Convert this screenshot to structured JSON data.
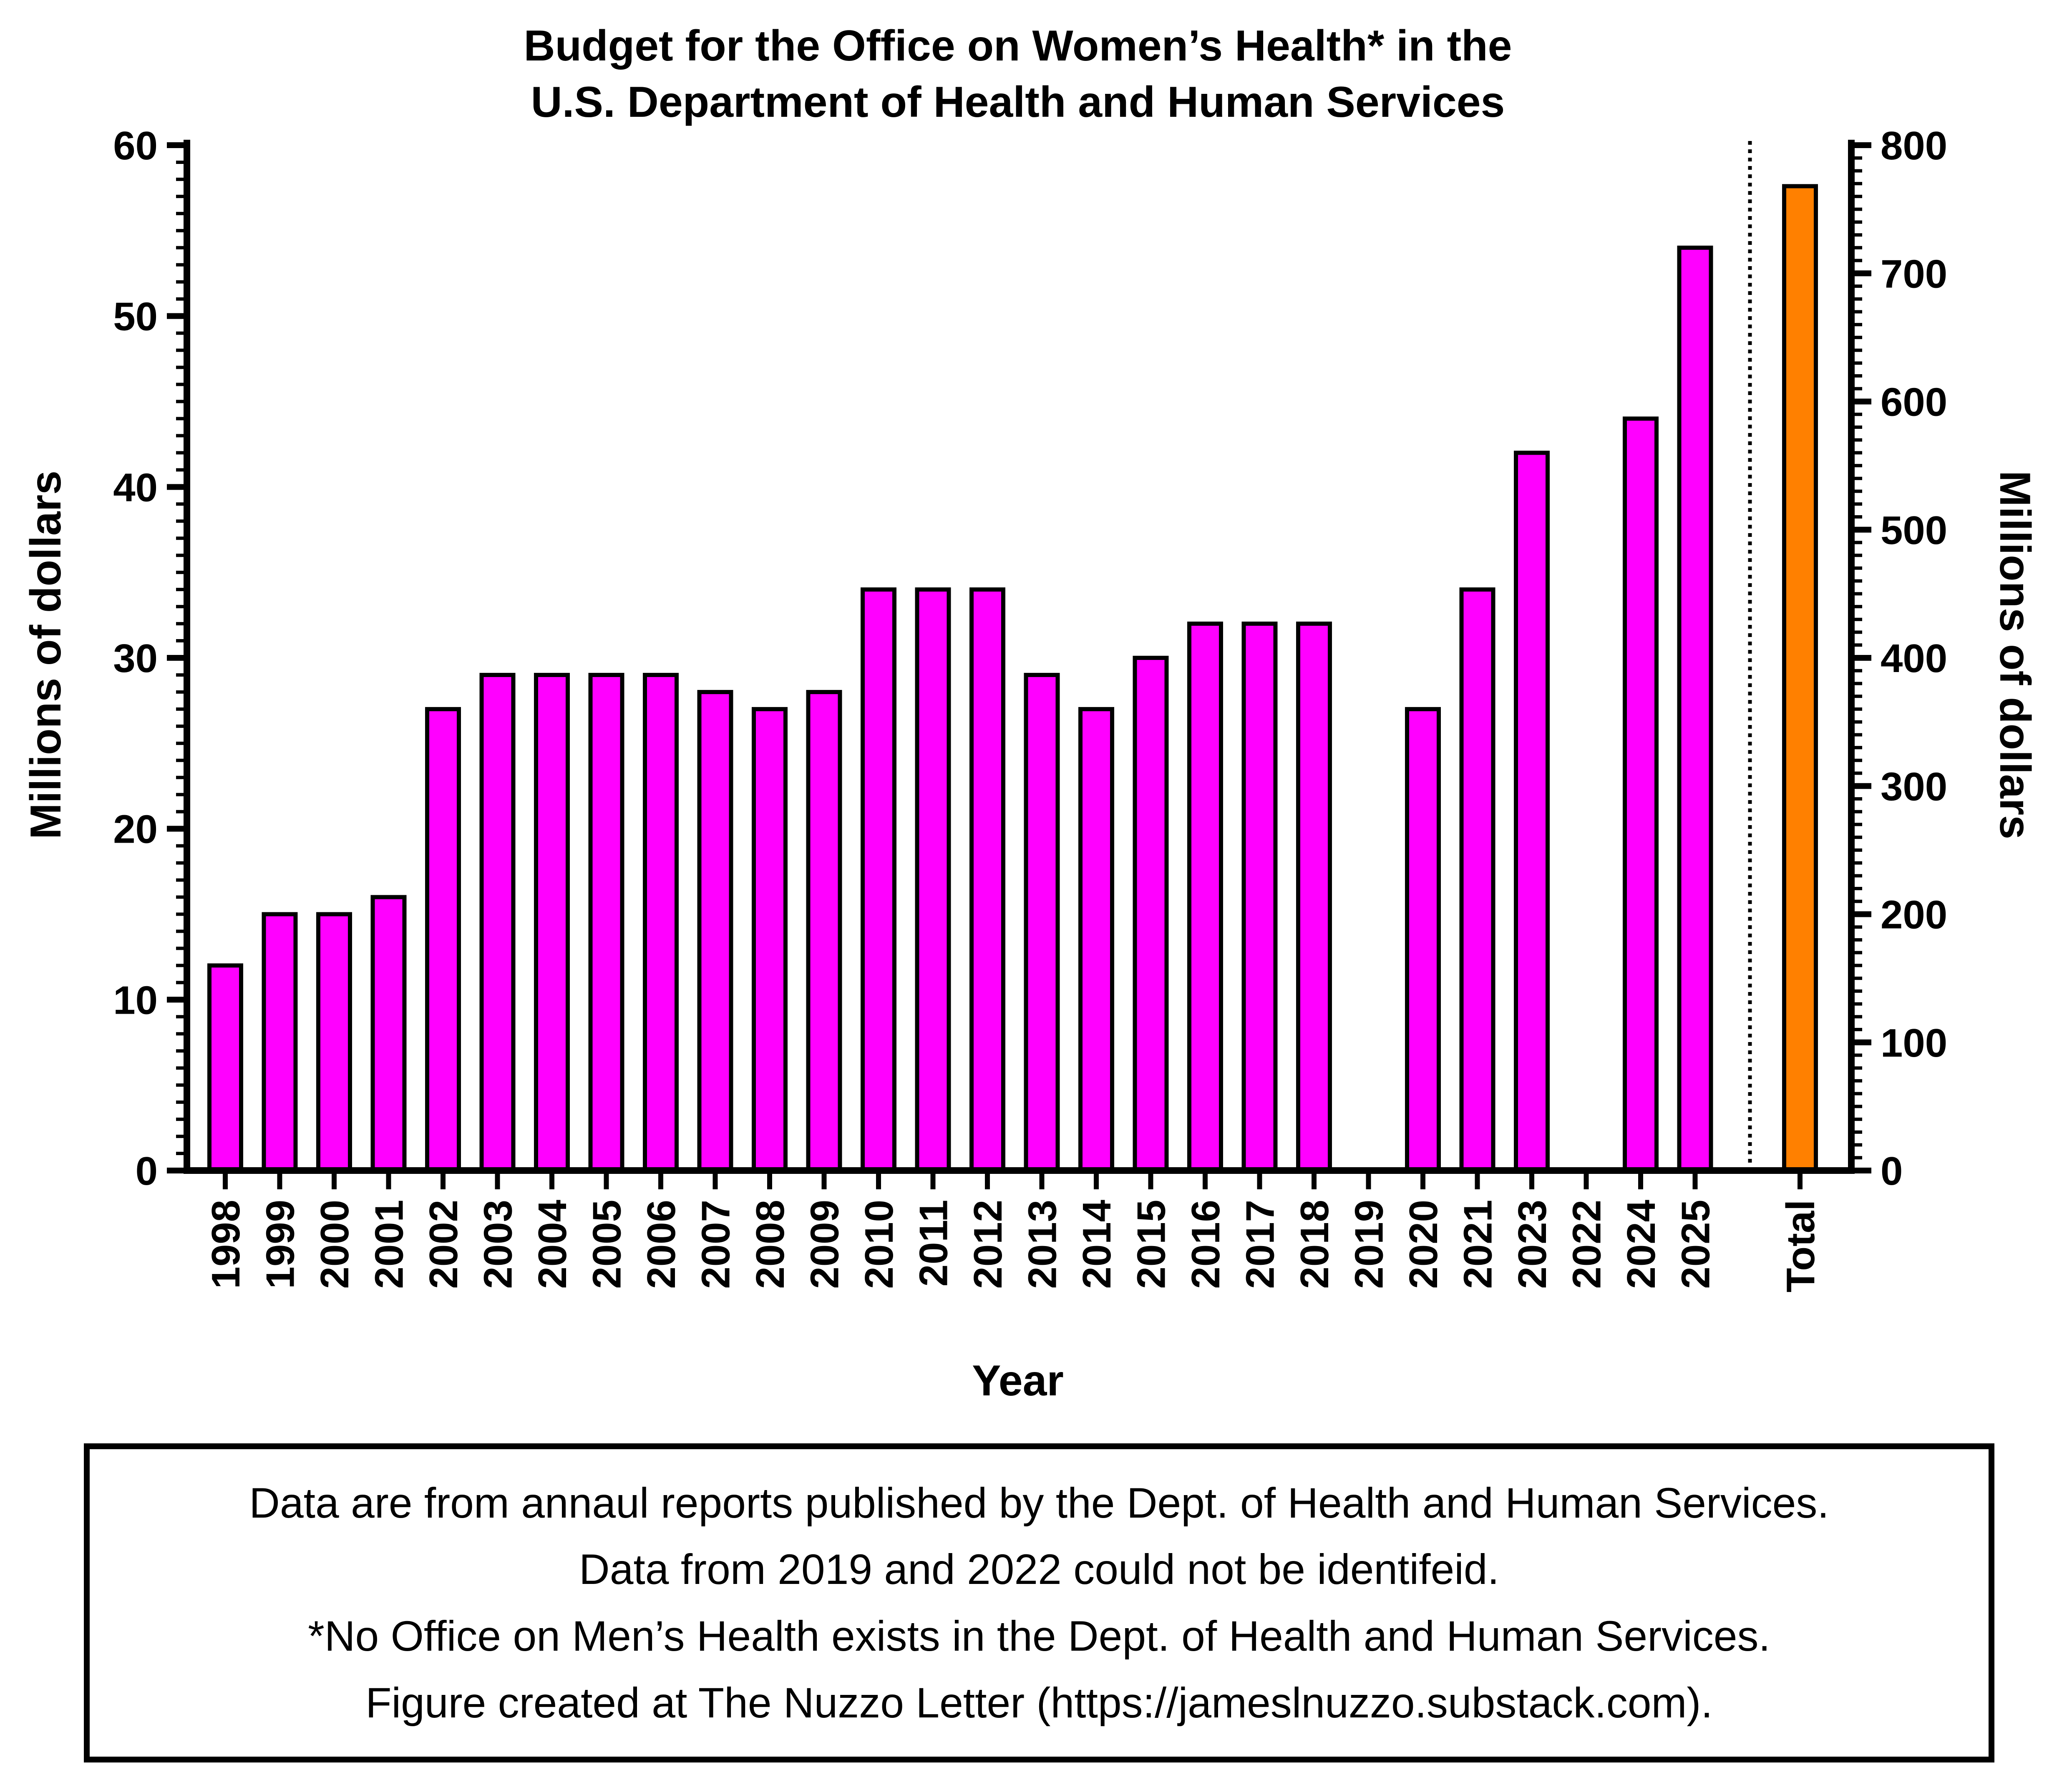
{
  "chart_data": {
    "type": "bar",
    "title": [
      "Budget for the Office on Women’s Health* in the",
      "U.S. Department of Health and Human Services"
    ],
    "xlabel": "Year",
    "ylabel_left": "Millions of dollars",
    "ylabel_right": "Millions of dollars",
    "ylim_left": [
      0,
      60
    ],
    "ylim_right": [
      0,
      800
    ],
    "yticks_left": [
      0,
      10,
      20,
      30,
      40,
      50,
      60
    ],
    "yticks_right": [
      0,
      100,
      200,
      300,
      400,
      500,
      600,
      700,
      800
    ],
    "categories": [
      "1998",
      "1999",
      "2000",
      "2001",
      "2002",
      "2003",
      "2004",
      "2005",
      "2006",
      "2007",
      "2008",
      "2009",
      "2010",
      "2011",
      "2012",
      "2013",
      "2014",
      "2015",
      "2016",
      "2017",
      "2018",
      "2019",
      "2020",
      "2021",
      "2023",
      "2022",
      "2024",
      "2025"
    ],
    "series": [
      {
        "axis": "left",
        "color": "#ff00ff",
        "values": [
          12,
          15,
          15,
          16,
          27,
          29,
          29,
          29,
          29,
          28,
          27,
          28,
          34,
          34,
          34,
          29,
          27,
          30,
          32,
          32,
          32,
          null,
          27,
          34,
          42,
          null,
          44,
          54
        ]
      },
      {
        "axis": "right",
        "color": "#ff8000",
        "category": "Total",
        "value": 768
      }
    ],
    "separator": "dotted vertical line before Total",
    "grid": false,
    "legend": "none"
  },
  "notes": [
    "Data are from annaul reports published by the Dept. of Health and Human Services.",
    "Data from 2019 and 2022 could not be identifeid.",
    "*No Office on Men’s Health exists in the Dept. of Health and Human Services.",
    "Figure created at The Nuzzo Letter (https://jameslnuzzo.substack.com)."
  ]
}
